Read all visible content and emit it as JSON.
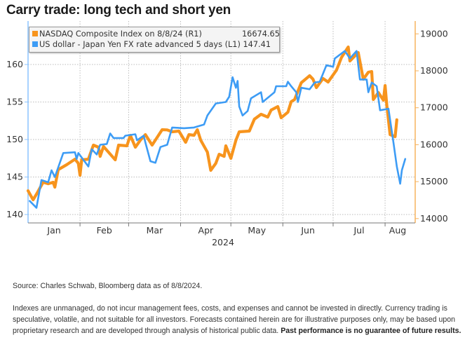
{
  "title": "Carry trade: long tech and short yen",
  "source": "Source: Charles Schwab, Bloomberg data as of 8/8/2024.",
  "disclaimer": "Indexes are unmanaged, do not incur management fees, costs, and expenses and cannot be invested in directly. Currency trading is speculative, volatile, and not suitable for all investors. Forecasts contained herein are for illustrative purposes only, may be based upon proprietary research and are developed through analysis of historical public data.",
  "disclaimer_bold": "Past performance is no guarantee of future results.",
  "chart_data": {
    "type": "line",
    "title": "Carry trade: long tech and short yen",
    "xlabel": "2024",
    "x_tick_labels": [
      "Jan",
      "Feb",
      "Mar",
      "Apr",
      "May",
      "Jun",
      "Jul",
      "Aug"
    ],
    "xlim": [
      "2024-01-01",
      "2024-08-16"
    ],
    "y_left": {
      "ylim": [
        139,
        165
      ],
      "ticks": [
        "140",
        "145",
        "150",
        "155",
        "160"
      ],
      "color": "#4da6ff"
    },
    "y_right": {
      "ylim": [
        13800,
        19300
      ],
      "ticks": [
        "14000",
        "15000",
        "16000",
        "17000",
        "18000",
        "19000"
      ],
      "color": "#f7941d"
    },
    "grid": true,
    "legend": "top-left",
    "legend_entries": [
      {
        "label": "NASDAQ Composite Index on 8/8/24 (R1)",
        "value": "16674.65",
        "color": "#f7941d"
      },
      {
        "label": "US dollar - Japan Yen FX rate advanced 5 days (L1)",
        "value": "147.41",
        "color": "#3d9cf5"
      }
    ],
    "series": [
      {
        "name": "NASDAQ Composite Index on 8/8/24 (R1)",
        "axis": "right",
        "color": "#f7941d",
        "points": [
          [
            "2024-01-01",
            14754
          ],
          [
            "2024-01-04",
            14508
          ],
          [
            "2024-01-06",
            14660
          ],
          [
            "2024-01-10",
            14982
          ],
          [
            "2024-01-13",
            14944
          ],
          [
            "2024-01-16",
            14982
          ],
          [
            "2024-01-17",
            14850
          ],
          [
            "2024-01-19",
            15324
          ],
          [
            "2024-01-24",
            15457
          ],
          [
            "2024-01-29",
            15608
          ],
          [
            "2024-01-31",
            15495
          ],
          [
            "2024-02-01",
            15172
          ],
          [
            "2024-02-02",
            15590
          ],
          [
            "2024-02-06",
            15608
          ],
          [
            "2024-02-09",
            15988
          ],
          [
            "2024-02-12",
            15931
          ],
          [
            "2024-02-13",
            15684
          ],
          [
            "2024-02-15",
            15950
          ],
          [
            "2024-02-22",
            15590
          ],
          [
            "2024-02-24",
            15988
          ],
          [
            "2024-02-29",
            15969
          ],
          [
            "2024-03-02",
            16254
          ],
          [
            "2024-03-05",
            15931
          ],
          [
            "2024-03-08",
            16121
          ],
          [
            "2024-03-11",
            16273
          ],
          [
            "2024-03-15",
            15988
          ],
          [
            "2024-03-21",
            16406
          ],
          [
            "2024-03-24",
            16400
          ],
          [
            "2024-03-27",
            16349
          ],
          [
            "2024-03-31",
            16368
          ],
          [
            "2024-04-04",
            16064
          ],
          [
            "2024-04-06",
            16273
          ],
          [
            "2024-04-09",
            16254
          ],
          [
            "2024-04-11",
            16406
          ],
          [
            "2024-04-13",
            16121
          ],
          [
            "2024-04-17",
            15798
          ],
          [
            "2024-04-19",
            15305
          ],
          [
            "2024-04-22",
            15495
          ],
          [
            "2024-04-24",
            15741
          ],
          [
            "2024-04-27",
            15684
          ],
          [
            "2024-04-28",
            15969
          ],
          [
            "2024-05-01",
            15630
          ],
          [
            "2024-05-04",
            16121
          ],
          [
            "2024-05-06",
            16349
          ],
          [
            "2024-05-12",
            16368
          ],
          [
            "2024-05-15",
            16690
          ],
          [
            "2024-05-19",
            16823
          ],
          [
            "2024-05-23",
            16747
          ],
          [
            "2024-05-25",
            16937
          ],
          [
            "2024-05-29",
            17032
          ],
          [
            "2024-05-31",
            16728
          ],
          [
            "2024-06-04",
            16880
          ],
          [
            "2024-06-06",
            17165
          ],
          [
            "2024-06-08",
            17222
          ],
          [
            "2024-06-12",
            17677
          ],
          [
            "2024-06-17",
            17867
          ],
          [
            "2024-06-19",
            17772
          ],
          [
            "2024-06-21",
            17544
          ],
          [
            "2024-06-25",
            17791
          ],
          [
            "2024-06-28",
            17696
          ],
          [
            "2024-07-03",
            18019
          ],
          [
            "2024-07-06",
            18361
          ],
          [
            "2024-07-10",
            18645
          ],
          [
            "2024-07-11",
            18266
          ],
          [
            "2024-07-16",
            18494
          ],
          [
            "2024-07-19",
            17772
          ],
          [
            "2024-07-22",
            17962
          ],
          [
            "2024-07-24",
            17981
          ],
          [
            "2024-07-25",
            17222
          ],
          [
            "2024-07-28",
            17412
          ],
          [
            "2024-07-31",
            17203
          ],
          [
            "2024-08-01",
            17601
          ],
          [
            "2024-08-02",
            17070
          ],
          [
            "2024-08-04",
            16273
          ],
          [
            "2024-08-07",
            16216
          ],
          [
            "2024-08-08",
            16674.65
          ]
        ]
      },
      {
        "name": "US dollar - Japan Yen FX rate advanced 5 days (L1)",
        "axis": "left",
        "color": "#3d9cf5",
        "points": [
          [
            "2024-01-02",
            141.8
          ],
          [
            "2024-01-06",
            140.9
          ],
          [
            "2024-01-09",
            144.6
          ],
          [
            "2024-01-13",
            144.3
          ],
          [
            "2024-01-15",
            145.9
          ],
          [
            "2024-01-17",
            145.0
          ],
          [
            "2024-01-22",
            148.2
          ],
          [
            "2024-01-29",
            148.3
          ],
          [
            "2024-01-30",
            147.4
          ],
          [
            "2024-01-31",
            148.2
          ],
          [
            "2024-02-06",
            146.4
          ],
          [
            "2024-02-08",
            148.7
          ],
          [
            "2024-02-11",
            148.0
          ],
          [
            "2024-02-13",
            149.3
          ],
          [
            "2024-02-17",
            149.4
          ],
          [
            "2024-02-19",
            150.8
          ],
          [
            "2024-02-21",
            150.2
          ],
          [
            "2024-02-27",
            150.2
          ],
          [
            "2024-02-28",
            150.5
          ],
          [
            "2024-03-05",
            150.7
          ],
          [
            "2024-03-06",
            149.9
          ],
          [
            "2024-03-10",
            150.5
          ],
          [
            "2024-03-11",
            149.6
          ],
          [
            "2024-03-14",
            147.1
          ],
          [
            "2024-03-17",
            146.9
          ],
          [
            "2024-03-20",
            149.0
          ],
          [
            "2024-03-24",
            149.3
          ],
          [
            "2024-03-27",
            151.6
          ],
          [
            "2024-04-03",
            151.5
          ],
          [
            "2024-04-09",
            151.6
          ],
          [
            "2024-04-15",
            152.0
          ],
          [
            "2024-04-17",
            153.2
          ],
          [
            "2024-04-22",
            154.8
          ],
          [
            "2024-04-28",
            155.0
          ],
          [
            "2024-04-30",
            155.7
          ],
          [
            "2024-05-02",
            158.3
          ],
          [
            "2024-05-04",
            156.9
          ],
          [
            "2024-05-05",
            157.8
          ],
          [
            "2024-05-06",
            154.4
          ],
          [
            "2024-05-08",
            153.2
          ],
          [
            "2024-05-11",
            153.8
          ],
          [
            "2024-05-13",
            155.5
          ],
          [
            "2024-05-19",
            156.3
          ],
          [
            "2024-05-20",
            155.0
          ],
          [
            "2024-05-27",
            156.3
          ],
          [
            "2024-05-28",
            157.1
          ],
          [
            "2024-06-03",
            157.1
          ],
          [
            "2024-06-04",
            157.7
          ],
          [
            "2024-06-06",
            157.1
          ],
          [
            "2024-06-09",
            156.3
          ],
          [
            "2024-06-10",
            155.0
          ],
          [
            "2024-06-12",
            156.9
          ],
          [
            "2024-06-17",
            156.7
          ],
          [
            "2024-06-20",
            157.6
          ],
          [
            "2024-06-23",
            157.7
          ],
          [
            "2024-06-27",
            159.9
          ],
          [
            "2024-07-01",
            159.7
          ],
          [
            "2024-07-02",
            160.8
          ],
          [
            "2024-07-08",
            161.8
          ],
          [
            "2024-07-11",
            160.8
          ],
          [
            "2024-07-15",
            161.8
          ],
          [
            "2024-07-17",
            158.0
          ],
          [
            "2024-07-21",
            158.0
          ],
          [
            "2024-07-22",
            156.3
          ],
          [
            "2024-07-24",
            157.6
          ],
          [
            "2024-07-27",
            157.1
          ],
          [
            "2024-07-29",
            153.9
          ],
          [
            "2024-08-03",
            154.1
          ],
          [
            "2024-08-06",
            149.6
          ],
          [
            "2024-08-08",
            146.4
          ],
          [
            "2024-08-10",
            144.1
          ],
          [
            "2024-08-11",
            145.9
          ],
          [
            "2024-08-13",
            147.41
          ]
        ]
      }
    ]
  }
}
